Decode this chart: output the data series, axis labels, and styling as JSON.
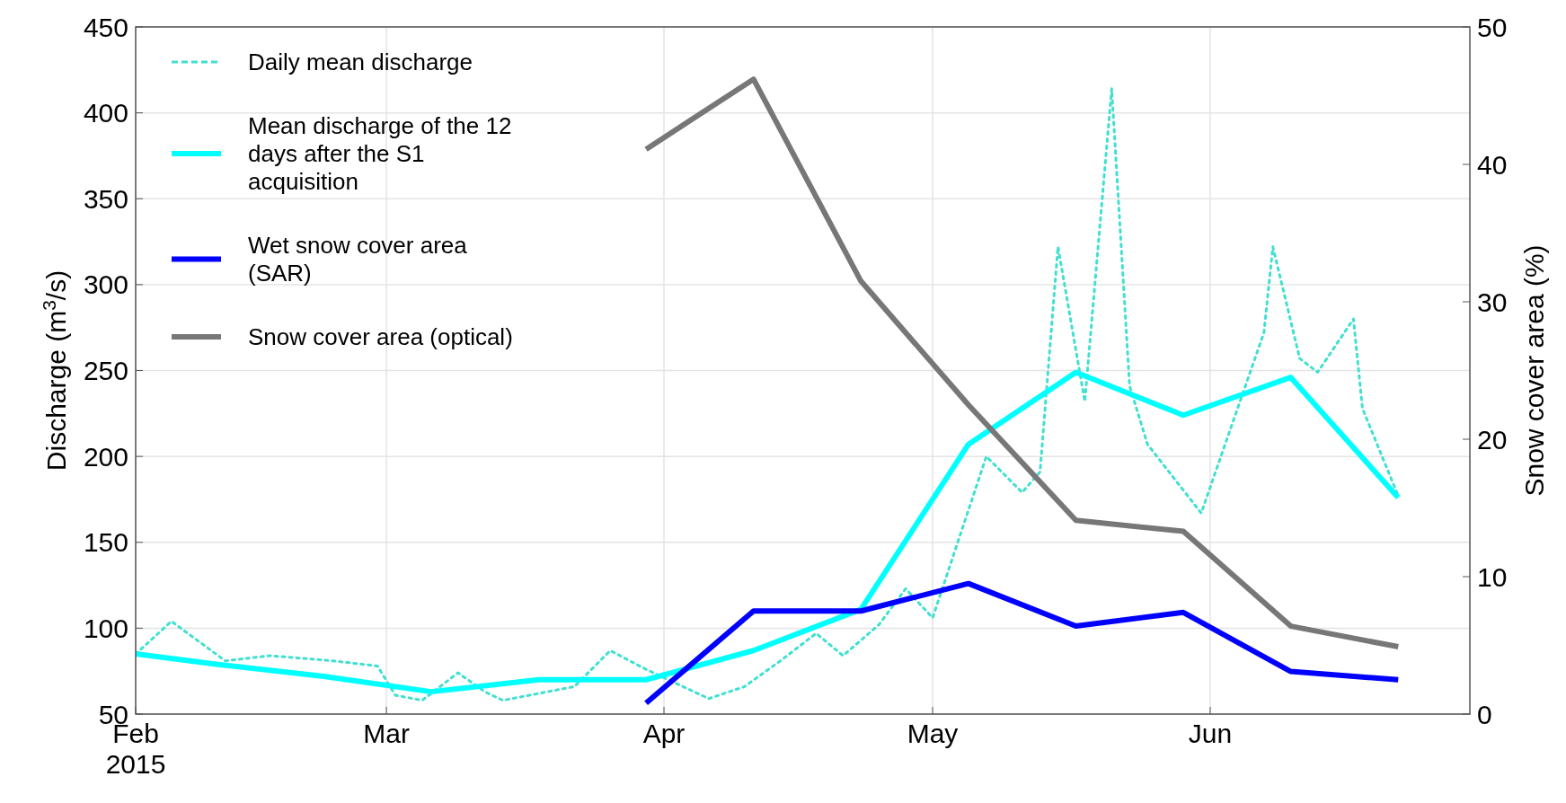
{
  "chart_data": {
    "type": "line",
    "ylabel": "Discharge (m$^{3}$/s)",
    "y2label": "Snow cover area (%)",
    "xlim": [
      "2015-02-01",
      "2015-06-30"
    ],
    "xticks": [
      {
        "value": "2015-02-01",
        "label": "Feb\n2015"
      },
      {
        "value": "2015-03-01",
        "label": "Mar"
      },
      {
        "value": "2015-04-01",
        "label": "Apr"
      },
      {
        "value": "2015-05-01",
        "label": "May"
      },
      {
        "value": "2015-06-01",
        "label": "Jun"
      }
    ],
    "ylim": [
      50,
      450
    ],
    "yticks": [
      50,
      100,
      150,
      200,
      250,
      300,
      350,
      400,
      450
    ],
    "y2lim": [
      0,
      50
    ],
    "y2ticks": [
      0,
      10,
      20,
      30,
      40,
      50
    ],
    "grid": true,
    "legend": "top left",
    "series": [
      {
        "name": "Daily mean discharge",
        "color": "#40e0d0",
        "line_style": "dotted",
        "x": [
          "2015-02-01",
          "2015-02-05",
          "2015-02-11",
          "2015-02-16",
          "2015-02-23",
          "2015-02-28",
          "2015-03-02",
          "2015-03-05",
          "2015-03-09",
          "2015-03-12",
          "2015-03-14",
          "2015-03-17",
          "2015-03-22",
          "2015-03-26",
          "2015-03-30",
          "2015-04-06",
          "2015-04-10",
          "2015-04-14",
          "2015-04-18",
          "2015-04-21",
          "2015-04-25",
          "2015-04-28",
          "2015-05-01",
          "2015-05-07",
          "2015-05-11",
          "2015-05-13",
          "2015-05-15",
          "2015-05-18",
          "2015-05-21",
          "2015-05-23",
          "2015-05-25",
          "2015-05-31",
          "2015-06-07",
          "2015-06-08",
          "2015-06-11",
          "2015-06-13",
          "2015-06-17",
          "2015-06-18",
          "2015-06-22"
        ],
        "values": [
          85,
          104,
          81,
          84,
          81,
          78,
          61,
          58,
          74,
          63,
          58,
          61,
          66,
          87,
          76,
          59,
          66,
          81,
          97,
          84,
          102,
          123,
          106,
          200,
          179,
          191,
          322,
          232,
          414,
          241,
          207,
          167,
          272,
          322,
          257,
          249,
          280,
          228,
          177
        ]
      },
      {
        "name": "Mean discharge of the 12 days after the S1 acquisition",
        "color": "#00ffff",
        "line_style": "solid",
        "x": [
          "2015-02-01",
          "2015-02-10",
          "2015-02-22",
          "2015-03-06",
          "2015-03-18",
          "2015-03-30",
          "2015-04-11",
          "2015-04-23",
          "2015-05-05",
          "2015-05-17",
          "2015-05-29",
          "2015-06-10",
          "2015-06-22"
        ],
        "values": [
          85,
          79,
          72,
          63,
          70,
          70,
          87,
          111,
          207,
          249,
          224,
          246,
          176
        ]
      },
      {
        "name": "Wet snow cover area (SAR)",
        "color": "#0000ff",
        "line_style": "solid",
        "axis": "y2",
        "x": [
          "2015-03-30",
          "2015-04-11",
          "2015-04-23",
          "2015-05-05",
          "2015-05-17",
          "2015-05-29",
          "2015-06-10",
          "2015-06-22"
        ],
        "values": [
          0.8,
          7.5,
          7.5,
          9.5,
          6.4,
          7.4,
          3.1,
          2.5
        ]
      },
      {
        "name": "Snow cover area (optical)",
        "color": "#777777",
        "line_style": "solid",
        "axis": "y2",
        "x": [
          "2015-03-30",
          "2015-04-11",
          "2015-04-23",
          "2015-05-05",
          "2015-05-17",
          "2015-05-29",
          "2015-06-10",
          "2015-06-22"
        ],
        "values": [
          41.1,
          46.2,
          31.5,
          22.5,
          14.1,
          13.3,
          6.4,
          4.9
        ]
      }
    ]
  }
}
